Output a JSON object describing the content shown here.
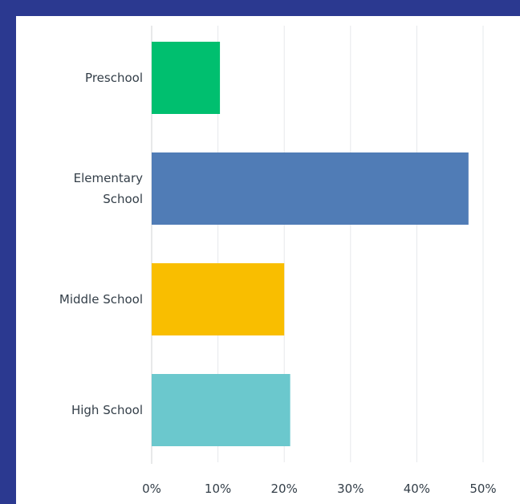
{
  "chart_data": {
    "type": "bar",
    "orientation": "horizontal",
    "categories": [
      [
        "Preschool"
      ],
      [
        "Elementary",
        "School"
      ],
      [
        "Middle School"
      ],
      [
        "High School"
      ]
    ],
    "values": [
      10.3,
      47.8,
      20.0,
      20.9
    ],
    "unit": "%",
    "xlim": [
      0,
      50
    ],
    "ticks": [
      "0%",
      "10%",
      "20%",
      "30%",
      "40%",
      "50%"
    ],
    "grid": true,
    "colors": [
      "#00bf6f",
      "#507cb6",
      "#f9be00",
      "#6bc8cd"
    ],
    "title": "",
    "xlabel": "",
    "ylabel": ""
  }
}
